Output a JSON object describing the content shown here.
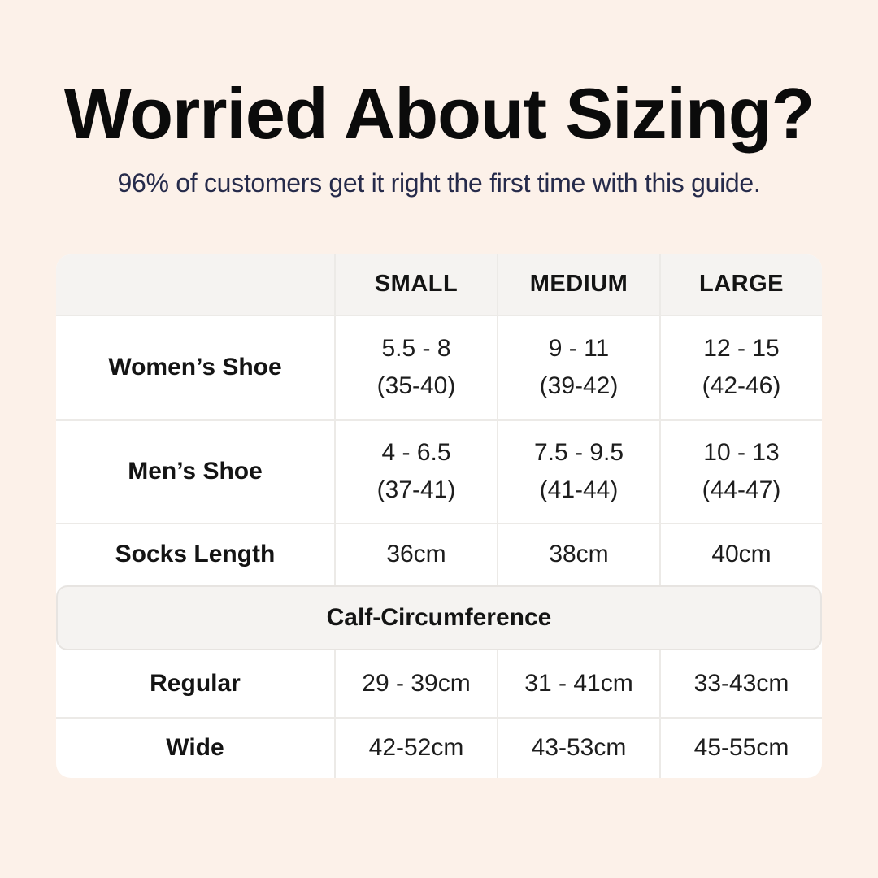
{
  "colors": {
    "bg": "#fcf1e9",
    "card": "#ffffff",
    "band": "#f5f3f1",
    "line": "#eceae7",
    "band-border": "#e7e4e1",
    "title": "#0b0b0b",
    "subtitle": "#262b4b",
    "label": "#141414",
    "value": "#1d1d1d"
  },
  "header": {
    "title": "Worried About Sizing?",
    "subtitle": "96% of customers get it right the first time with this guide."
  },
  "table": {
    "columns": [
      "",
      "SMALL",
      "MEDIUM",
      "LARGE"
    ],
    "rows": [
      {
        "label": "Women’s Shoe",
        "cells": [
          [
            "5.5 - 8",
            "(35-40)"
          ],
          [
            "9 - 11",
            "(39-42)"
          ],
          [
            "12 - 15",
            "(42-46)"
          ]
        ]
      },
      {
        "label": "Men’s Shoe",
        "cells": [
          [
            "4 - 6.5",
            "(37-41)"
          ],
          [
            "7.5 - 9.5",
            "(41-44)"
          ],
          [
            "10 - 13",
            "(44-47)"
          ]
        ]
      },
      {
        "label": "Socks Length",
        "cells": [
          [
            "36cm"
          ],
          [
            "38cm"
          ],
          [
            "40cm"
          ]
        ]
      }
    ],
    "section_header": "Calf-Circumference",
    "section_rows": [
      {
        "label": "Regular",
        "cells": [
          [
            "29 - 39cm"
          ],
          [
            "31 - 41cm"
          ],
          [
            "33-43cm"
          ]
        ]
      },
      {
        "label": "Wide",
        "cells": [
          [
            "42-52cm"
          ],
          [
            "43-53cm"
          ],
          [
            "45-55cm"
          ]
        ]
      }
    ]
  }
}
